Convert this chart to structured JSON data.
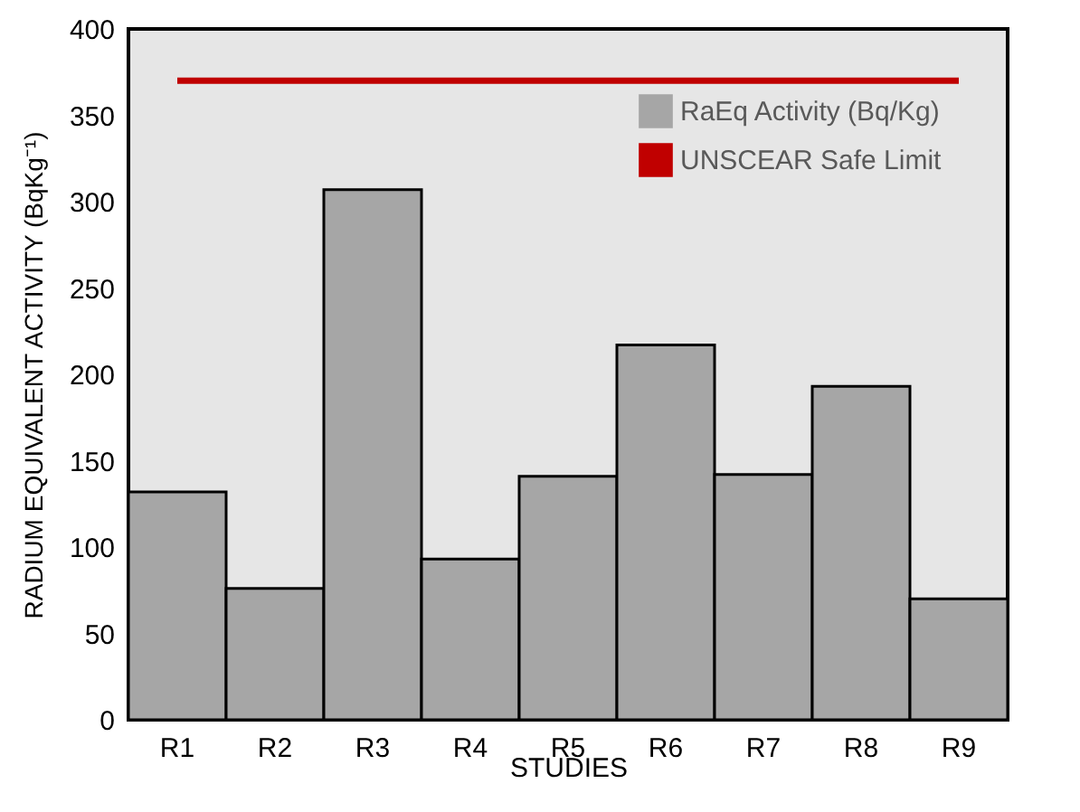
{
  "chart_data": {
    "type": "bar",
    "xlabel": "STUDIES",
    "ylabel": "RADIUM EQUIVALENT ACTIVITY (BqKg⁻¹)",
    "categories": [
      "R1",
      "R2",
      "R3",
      "R4",
      "R5",
      "R6",
      "R7",
      "R8",
      "R9"
    ],
    "series": [
      {
        "name": "RaEq Activity (Bq/Kg)",
        "color": "#a6a6a6",
        "values": [
          132,
          76,
          307,
          93,
          141,
          217,
          142,
          193,
          70
        ]
      },
      {
        "name": "UNSCEAR Safe Limit",
        "type": "line",
        "color": "#c00000",
        "values": [
          370,
          370,
          370,
          370,
          370,
          370,
          370,
          370,
          370
        ]
      }
    ],
    "ylim": [
      0,
      400
    ],
    "yticks": [
      0,
      50,
      100,
      150,
      200,
      250,
      300,
      350,
      400
    ],
    "grid": false,
    "legend": "top right",
    "marker": "none",
    "line_style": "solid"
  }
}
